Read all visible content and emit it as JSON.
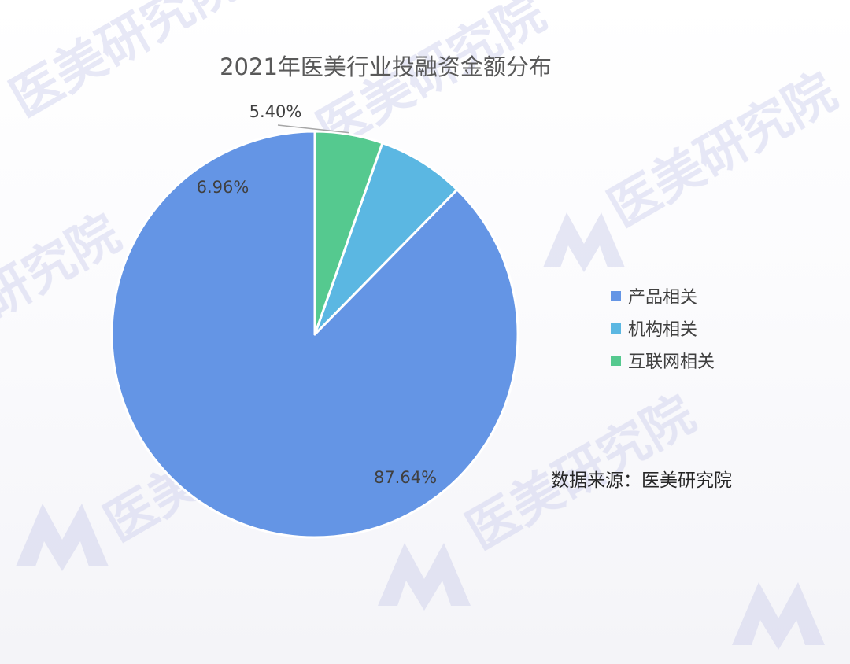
{
  "chart_data": {
    "type": "pie",
    "title": "2021年医美行业投融资金额分布",
    "categories": [
      "产品相关",
      "机构相关",
      "互联网相关"
    ],
    "values": [
      87.64,
      6.96,
      5.4
    ],
    "labels": [
      "87.64%",
      "6.96%",
      "5.40%"
    ],
    "colors": [
      "#6495e5",
      "#5bb7e2",
      "#55c98f"
    ],
    "legend_position": "right",
    "start_angle": "12 o'clock, counterclockwise"
  },
  "source_note": "数据来源：医美研究院",
  "watermark": {
    "text": "医美研究院",
    "color": "#c9cbe6"
  }
}
